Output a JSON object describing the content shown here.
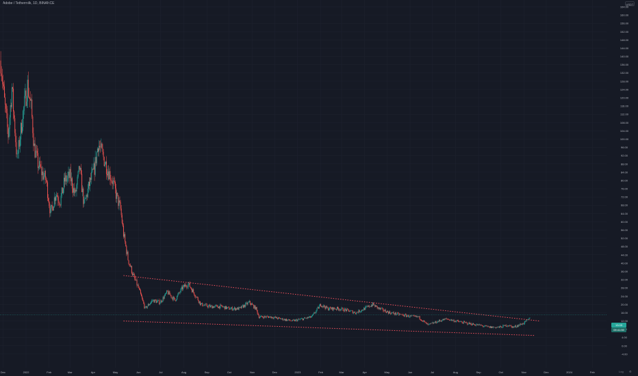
{
  "legend": {
    "text": "Adobe / Tethermilk, 1D, BINANCE"
  },
  "currency_label": "USDT",
  "price_tags": {
    "last": "13.03",
    "countdown": "09:41:59"
  },
  "axis_buttons": {
    "log": "Log",
    "auto": "⚙"
  },
  "colors": {
    "background": "#161a25",
    "up": "#26a69a",
    "down": "#ef5350",
    "trendline": "#f7525f",
    "grid": "#1f2330",
    "text": "#b2b5be"
  },
  "chart_data": {
    "type": "line",
    "subtype": "candlestick",
    "title": "",
    "ylim": [
      -8,
      164
    ],
    "yticks": [
      "164.00",
      "160.00",
      "156.00",
      "152.00",
      "148.00",
      "144.00",
      "140.00",
      "136.00",
      "132.00",
      "128.00",
      "124.00",
      "120.00",
      "116.00",
      "112.00",
      "108.00",
      "104.00",
      "100.00",
      "96.00",
      "92.00",
      "88.00",
      "84.00",
      "80.00",
      "76.00",
      "72.00",
      "68.00",
      "64.00",
      "60.00",
      "56.00",
      "52.00",
      "48.00",
      "44.00",
      "40.00",
      "36.00",
      "32.00",
      "28.00",
      "24.00",
      "20.00",
      "16.00",
      "12.00",
      "8.00",
      "4.00",
      "0.00",
      "-4.00"
    ],
    "xticks": [
      "Dec",
      "2022",
      "Feb",
      "Mar",
      "Apr",
      "May",
      "Jun",
      "Jul",
      "Aug",
      "Sep",
      "Oct",
      "Nov",
      "Dec",
      "2023",
      "Feb",
      "Mar",
      "Apr",
      "May",
      "Jun",
      "Jul",
      "Aug",
      "Sep",
      "Oct",
      "Nov",
      "Dec",
      "2024",
      "Feb"
    ],
    "x_range": [
      "2021-11-27",
      "2024-02-20"
    ],
    "series": [
      {
        "x": [
          "2021-11-28",
          "2021-12-03",
          "2021-12-08",
          "2021-12-13",
          "2021-12-20",
          "2021-12-27",
          "2022-01-03",
          "2022-01-08",
          "2022-01-12",
          "2022-01-17",
          "2022-01-22",
          "2022-01-28",
          "2022-02-03",
          "2022-02-10",
          "2022-02-16",
          "2022-02-22",
          "2022-03-01",
          "2022-03-08",
          "2022-03-14",
          "2022-03-20",
          "2022-03-27",
          "2022-04-03",
          "2022-04-08",
          "2022-04-14",
          "2022-04-20",
          "2022-04-27",
          "2022-05-03",
          "2022-05-08",
          "2022-05-12",
          "2022-05-18",
          "2022-05-25",
          "2022-06-01",
          "2022-06-10",
          "2022-06-20",
          "2022-06-30",
          "2022-07-10",
          "2022-07-20",
          "2022-07-30",
          "2022-08-07",
          "2022-08-14",
          "2022-08-24",
          "2022-09-05",
          "2022-09-20",
          "2022-10-01",
          "2022-10-15",
          "2022-10-28",
          "2022-11-06",
          "2022-11-10",
          "2022-11-25",
          "2022-12-10",
          "2022-12-25",
          "2023-01-08",
          "2023-01-20",
          "2023-02-01",
          "2023-02-10",
          "2023-02-25",
          "2023-03-10",
          "2023-03-20",
          "2023-04-01",
          "2023-04-12",
          "2023-04-20",
          "2023-05-05",
          "2023-05-20",
          "2023-06-05",
          "2023-06-12",
          "2023-06-25",
          "2023-07-10",
          "2023-07-20",
          "2023-08-01",
          "2023-08-15",
          "2023-09-01",
          "2023-09-15",
          "2023-09-30",
          "2023-10-10",
          "2023-10-18",
          "2023-10-25",
          "2023-11-01",
          "2023-11-05",
          "2023-11-08",
          "2023-11-10"
        ],
        "close": [
          138,
          118,
          102,
          125,
          90,
          110,
          126,
          115,
          96,
          88,
          84,
          80,
          64,
          74,
          70,
          80,
          82,
          73,
          86,
          68,
          78,
          86,
          98,
          92,
          86,
          80,
          72,
          66,
          54,
          42,
          34,
          28,
          18,
          22,
          21,
          26,
          22,
          28,
          30,
          26,
          20,
          19,
          19,
          18,
          18,
          21,
          18,
          14,
          14,
          13,
          12,
          13,
          14,
          20,
          18,
          18,
          17,
          16,
          18,
          20,
          18,
          16,
          15,
          14,
          14,
          10,
          12,
          13,
          12,
          11,
          10,
          9,
          9,
          10,
          9,
          10,
          11,
          12,
          13,
          15
        ]
      }
    ],
    "trendlines": [
      {
        "style": "dotted",
        "from": [
          "2022-05-12",
          34
        ],
        "to": [
          "2023-11-22",
          12
        ]
      },
      {
        "style": "dotted",
        "from": [
          "2022-05-12",
          12
        ],
        "to": [
          "2023-11-15",
          5
        ]
      }
    ]
  }
}
